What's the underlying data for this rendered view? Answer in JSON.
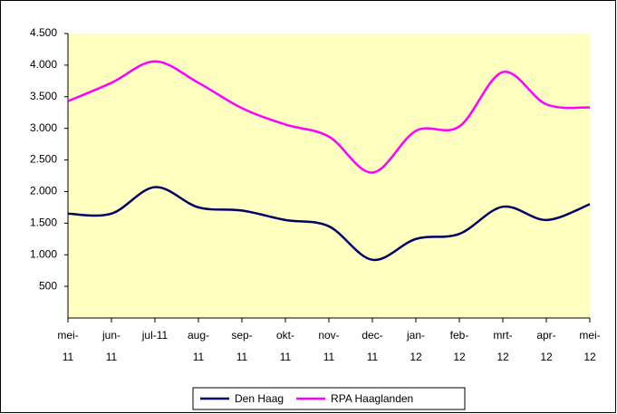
{
  "chart_data": {
    "type": "line",
    "categories": [
      "mei-11",
      "jun-11",
      "jul-11",
      "aug-11",
      "sep-11",
      "okt-11",
      "nov-11",
      "dec-11",
      "jan-12",
      "feb-12",
      "mrt-12",
      "apr-12",
      "mei-12"
    ],
    "series": [
      {
        "name": "Den Haag",
        "color": "#000066",
        "values": [
          1650,
          1650,
          2070,
          1750,
          1700,
          1550,
          1450,
          920,
          1250,
          1330,
          1760,
          1550,
          1800
        ]
      },
      {
        "name": "RPA Haaglanden",
        "color": "#ff00ff",
        "values": [
          3430,
          3720,
          4060,
          3720,
          3320,
          3060,
          2870,
          2300,
          2960,
          3030,
          3890,
          3380,
          3330
        ]
      }
    ],
    "ylim": [
      0,
      4500
    ],
    "yticks": [
      500,
      {
        "value": 1000,
        "label": "1.000"
      },
      {
        "value": 1500,
        "label": "1.500"
      },
      {
        "value": 2000,
        "label": "2.000"
      },
      {
        "value": 2500,
        "label": "2.500"
      },
      {
        "value": 3000,
        "label": "3.000"
      },
      {
        "value": 3500,
        "label": "3.500"
      },
      {
        "value": 4000,
        "label": "4.000"
      },
      {
        "value": 4500,
        "label": "4.500"
      }
    ],
    "grid": false,
    "legend": "bottom",
    "plot_background": "#ffffc0"
  }
}
